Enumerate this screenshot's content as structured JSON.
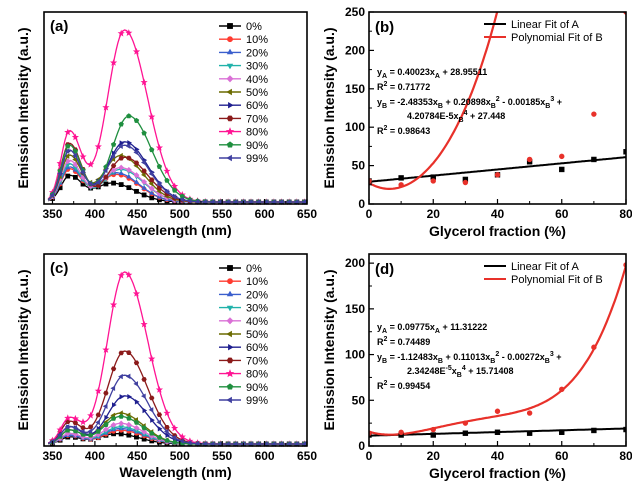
{
  "chart_data": [
    {
      "panel": "(a)",
      "type": "line",
      "xlabel": "Wavelength (nm)",
      "ylabel": "Emission Intensity (a.u.)",
      "xlim": [
        340,
        650
      ],
      "xticks": [
        "350",
        "400",
        "450",
        "500",
        "550",
        "600",
        "650"
      ],
      "legend_position": "top-right",
      "series": [
        {
          "name": "0%",
          "color": "#000000",
          "marker": "square",
          "peaks": [
            [
              370,
              0.15
            ],
            [
              420,
              0.11
            ]
          ]
        },
        {
          "name": "10%",
          "color": "#ff3b30",
          "marker": "circle",
          "peaks": [
            [
              370,
              0.19
            ],
            [
              425,
              0.16
            ]
          ]
        },
        {
          "name": "20%",
          "color": "#3a5fcd",
          "marker": "triangle",
          "peaks": [
            [
              370,
              0.2
            ],
            [
              425,
              0.17
            ]
          ]
        },
        {
          "name": "30%",
          "color": "#20b2aa",
          "marker": "triangle-down",
          "peaks": [
            [
              370,
              0.22
            ],
            [
              430,
              0.19
            ]
          ]
        },
        {
          "name": "40%",
          "color": "#da70d6",
          "marker": "diamond",
          "peaks": [
            [
              370,
              0.24
            ],
            [
              430,
              0.2
            ]
          ]
        },
        {
          "name": "50%",
          "color": "#6b6b00",
          "marker": "triangle-left",
          "peaks": [
            [
              370,
              0.27
            ],
            [
              430,
              0.27
            ]
          ]
        },
        {
          "name": "60%",
          "color": "#1f1f8f",
          "marker": "triangle-right",
          "peaks": [
            [
              370,
              0.3
            ],
            [
              435,
              0.35
            ]
          ]
        },
        {
          "name": "70%",
          "color": "#8b1a1a",
          "marker": "hexagon",
          "peaks": [
            [
              370,
              0.34
            ],
            [
              435,
              0.26
            ]
          ]
        },
        {
          "name": "80%",
          "color": "#ff1493",
          "marker": "star",
          "peaks": [
            [
              370,
              0.41
            ],
            [
              435,
              1.0
            ]
          ]
        },
        {
          "name": "90%",
          "color": "#1f8f3f",
          "marker": "pentagon",
          "peaks": [
            [
              370,
              0.33
            ],
            [
              440,
              0.5
            ]
          ]
        },
        {
          "name": "99%",
          "color": "#4040a0",
          "marker": "triangle-left",
          "peaks": [
            [
              370,
              0.3
            ],
            [
              435,
              0.33
            ]
          ]
        }
      ]
    },
    {
      "panel": "(b)",
      "type": "scatter",
      "xlabel": "Glycerol fraction (%)",
      "ylabel": "Emission Intensity (a.u.)",
      "xlim": [
        0,
        80
      ],
      "ylim": [
        0,
        250
      ],
      "xticks": [
        "0",
        "20",
        "40",
        "60",
        "80"
      ],
      "yticks": [
        "0",
        "50",
        "100",
        "150",
        "200",
        "250"
      ],
      "legend_position": "top-right",
      "fits": [
        {
          "name": "Linear Fit of A",
          "color": "#000000",
          "coef": [
            28.95511,
            0.40023
          ]
        },
        {
          "name": "Polynomial Fit of B",
          "color": "#e8312a",
          "coef": [
            27.448,
            -2.48353,
            0.20898,
            -0.00185,
            4.20784e-05
          ]
        }
      ],
      "points_A": {
        "color": "#000000",
        "x": [
          0,
          10,
          20,
          30,
          40,
          50,
          60,
          70,
          80
        ],
        "y": [
          30,
          34,
          35,
          32,
          38,
          55,
          45,
          58,
          68
        ]
      },
      "points_B": {
        "color": "#e8312a",
        "x": [
          0,
          10,
          20,
          30,
          40,
          50,
          60,
          70,
          80
        ],
        "y": [
          30,
          25,
          30,
          28,
          38,
          58,
          62,
          117,
          250
        ]
      },
      "equations": [
        [
          "y",
          "A",
          " = 0.40023x",
          "A",
          " + 28.95511"
        ],
        [
          "R",
          "2",
          " = 0.71772"
        ],
        [
          "y",
          "B",
          " = -2.48353x",
          "B",
          " + 0.20898x",
          "B",
          "2",
          " - 0.00185x",
          "B",
          "3",
          " +"
        ],
        [
          "4.20784E-5x",
          "B",
          "4",
          " + 27.448"
        ],
        [
          "R",
          "2",
          " = 0.98643"
        ]
      ]
    },
    {
      "panel": "(c)",
      "type": "line",
      "xlabel": "Wavelength (nm)",
      "ylabel": "Emission Intensity (a.u.)",
      "xlim": [
        340,
        650
      ],
      "xticks": [
        "350",
        "400",
        "450",
        "500",
        "550",
        "600",
        "650"
      ],
      "legend_position": "top-right",
      "series": [
        {
          "name": "0%",
          "color": "#000000",
          "marker": "square",
          "peaks": [
            [
              370,
              0.04
            ],
            [
              425,
              0.06
            ]
          ]
        },
        {
          "name": "10%",
          "color": "#ff3b30",
          "marker": "circle",
          "peaks": [
            [
              370,
              0.05
            ],
            [
              430,
              0.08
            ]
          ]
        },
        {
          "name": "20%",
          "color": "#3a5fcd",
          "marker": "triangle",
          "peaks": [
            [
              370,
              0.05
            ],
            [
              430,
              0.09
            ]
          ]
        },
        {
          "name": "30%",
          "color": "#20b2aa",
          "marker": "triangle-down",
          "peaks": [
            [
              370,
              0.06
            ],
            [
              430,
              0.1
            ]
          ]
        },
        {
          "name": "40%",
          "color": "#da70d6",
          "marker": "diamond",
          "peaks": [
            [
              370,
              0.06
            ],
            [
              430,
              0.12
            ]
          ]
        },
        {
          "name": "50%",
          "color": "#6b6b00",
          "marker": "triangle-left",
          "peaks": [
            [
              370,
              0.08
            ],
            [
              430,
              0.18
            ]
          ]
        },
        {
          "name": "60%",
          "color": "#1f1f8f",
          "marker": "triangle-right",
          "peaks": [
            [
              370,
              0.1
            ],
            [
              435,
              0.28
            ]
          ]
        },
        {
          "name": "70%",
          "color": "#8b1a1a",
          "marker": "hexagon",
          "peaks": [
            [
              370,
              0.13
            ],
            [
              435,
              0.54
            ]
          ]
        },
        {
          "name": "80%",
          "color": "#ff1493",
          "marker": "star",
          "peaks": [
            [
              370,
              0.15
            ],
            [
              435,
              1.0
            ]
          ]
        },
        {
          "name": "90%",
          "color": "#1f8f3f",
          "marker": "pentagon",
          "peaks": [
            [
              370,
              0.08
            ],
            [
              430,
              0.16
            ]
          ]
        },
        {
          "name": "99%",
          "color": "#4040a0",
          "marker": "triangle-left",
          "peaks": [
            [
              370,
              0.1
            ],
            [
              435,
              0.4
            ]
          ]
        }
      ]
    },
    {
      "panel": "(d)",
      "type": "scatter",
      "xlabel": "Glycerol fraction (%)",
      "ylabel": "Emission Intensity (a.u.)",
      "xlim": [
        0,
        80
      ],
      "ylim": [
        0,
        210
      ],
      "xticks": [
        "0",
        "20",
        "40",
        "60",
        "80"
      ],
      "yticks": [
        "0",
        "50",
        "100",
        "150",
        "200"
      ],
      "legend_position": "top-right",
      "fits": [
        {
          "name": "Linear Fit of A",
          "color": "#000000",
          "coef": [
            11.31222,
            0.09775
          ]
        },
        {
          "name": "Polynomial Fit of B",
          "color": "#e8312a",
          "coef": [
            15.71408,
            -1.12483,
            0.11013,
            -0.00272,
            2.34248e-05
          ]
        }
      ],
      "points_A": {
        "color": "#000000",
        "x": [
          0,
          10,
          20,
          30,
          40,
          50,
          60,
          70,
          80
        ],
        "y": [
          12,
          12,
          12,
          14,
          15,
          14,
          15,
          17,
          18
        ]
      },
      "points_B": {
        "color": "#e8312a",
        "x": [
          0,
          10,
          20,
          30,
          40,
          50,
          60,
          70,
          80
        ],
        "y": [
          14,
          15,
          18,
          25,
          38,
          36,
          62,
          108,
          198
        ]
      },
      "equations": [
        [
          "y",
          "A",
          " = 0.09775x",
          "A",
          " + 11.31222"
        ],
        [
          "R",
          "2",
          " = 0.74489"
        ],
        [
          "y",
          "B",
          " = -1.12483x",
          "B",
          " + 0.11013x",
          "B",
          "2",
          " - 0.00272x",
          "B",
          "3",
          " +"
        ],
        [
          "2.34248E",
          "-5",
          "x",
          "B",
          "4",
          " + 15.71408"
        ],
        [
          "R",
          "2",
          " = 0.99454"
        ]
      ]
    }
  ]
}
